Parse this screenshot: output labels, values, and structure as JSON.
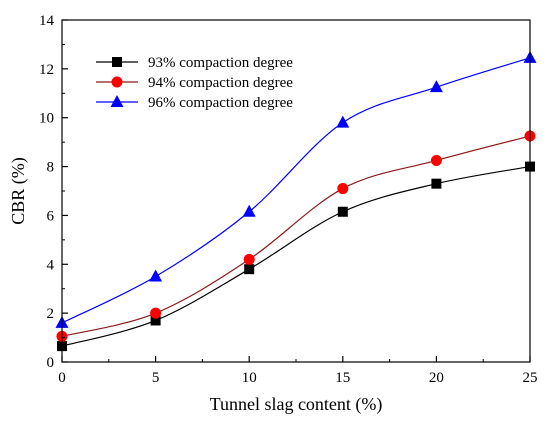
{
  "chart_data": {
    "type": "line",
    "xlabel": "Tunnel slag content (%)",
    "ylabel": "CBR (%)",
    "xlim": [
      0,
      25
    ],
    "ylim": [
      0,
      14
    ],
    "x_ticks": [
      0,
      5,
      10,
      15,
      20,
      25
    ],
    "y_ticks": [
      0,
      2,
      4,
      6,
      8,
      10,
      12,
      14
    ],
    "grid": false,
    "legend_position": "top-left",
    "x": [
      0,
      5,
      10,
      15,
      20,
      25
    ],
    "series": [
      {
        "name": "93% compaction degree",
        "marker": "square",
        "color": "#000000",
        "line_color": "#000000",
        "values": [
          0.65,
          1.7,
          3.8,
          6.15,
          7.3,
          8.0
        ]
      },
      {
        "name": "94% compaction degree",
        "marker": "circle",
        "color": "#ff0000",
        "line_color": "#8b1a1a",
        "values": [
          1.05,
          2.0,
          4.2,
          7.1,
          8.25,
          9.25
        ]
      },
      {
        "name": "96% compaction degree",
        "marker": "triangle",
        "color": "#0000ff",
        "line_color": "#0000ff",
        "values": [
          1.6,
          3.5,
          6.15,
          9.8,
          11.25,
          12.45
        ]
      }
    ]
  }
}
